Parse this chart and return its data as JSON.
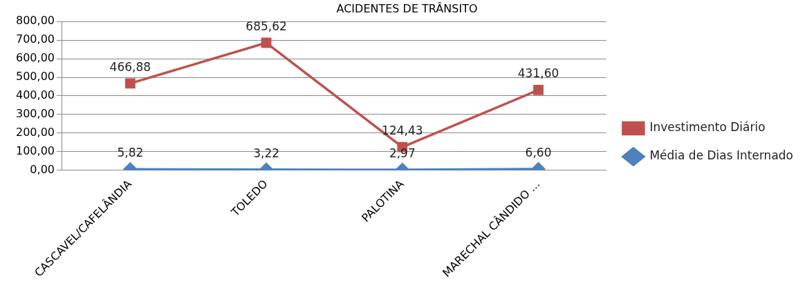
{
  "chart_data": {
    "type": "line",
    "title": "ACIDENTES DE TRÂNSITO",
    "categories": [
      "CASCAVEL/CAFELÂNDIA",
      "TOLEDO",
      "PALOTINA",
      "MARECHAL CÂNDIDO ..."
    ],
    "series": [
      {
        "name": "Investimento Diário",
        "color": "#c0504d",
        "marker": "square",
        "values": [
          466.88,
          685.62,
          124.43,
          431.6
        ],
        "value_labels": [
          "466,88",
          "685,62",
          "124,43",
          "431,60"
        ]
      },
      {
        "name": "Média de Dias Internado",
        "color": "#4f81bd",
        "marker": "diamond",
        "values": [
          5.82,
          3.22,
          2.97,
          6.6
        ],
        "value_labels": [
          "5,82",
          "3,22",
          "2,97",
          "6,60"
        ]
      }
    ],
    "ylim": [
      0,
      800
    ],
    "yticks": [
      {
        "value": 0,
        "label": "0,00"
      },
      {
        "value": 100,
        "label": "100,00"
      },
      {
        "value": 200,
        "label": "200,00"
      },
      {
        "value": 300,
        "label": "300,00"
      },
      {
        "value": 400,
        "label": "400,00"
      },
      {
        "value": 500,
        "label": "500,00"
      },
      {
        "value": 600,
        "label": "600,00"
      },
      {
        "value": 700,
        "label": "700,00"
      },
      {
        "value": 800,
        "label": "800,00"
      }
    ],
    "grid": "y",
    "legend": "right",
    "line_style": "solid"
  }
}
